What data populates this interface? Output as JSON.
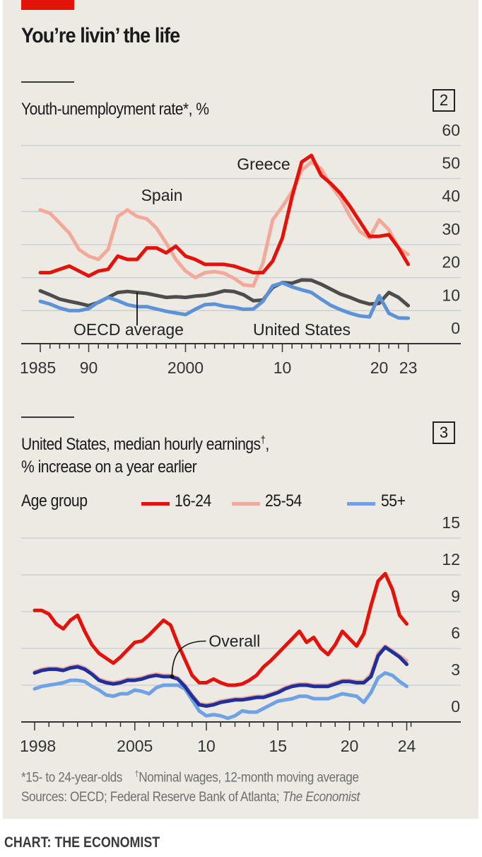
{
  "headline": "You’re livin’ the life",
  "colors": {
    "background": "#eceae2",
    "accent_red": "#e3120b",
    "greece": "#e3120b",
    "spain": "#f2a99a",
    "oecd": "#4d4d4d",
    "us": "#5b93d6",
    "age_16_24": "#e3120b",
    "age_25_54": "#f2a99a",
    "age_55_plus": "#6ea2e4",
    "overall": "#1f2f9c",
    "gridline": "#c9ccd3",
    "axis": "#333333"
  },
  "panel2": {
    "number": "2",
    "subtitle": "Youth-unemployment rate*, %"
  },
  "panel3": {
    "number": "3",
    "subtitle_line1": "United States, median hourly earnings",
    "subtitle_dagger": "†",
    "subtitle_comma": ",",
    "subtitle_line2": "% increase on a year earlier",
    "legend_title": "Age group",
    "legend": [
      {
        "label": "16-24",
        "color": "#e3120b"
      },
      {
        "label": "25-54",
        "color": "#f2a99a"
      },
      {
        "label": "55+",
        "color": "#6ea2e4"
      }
    ]
  },
  "footnotes": {
    "note1": "*15- to 24-year-olds",
    "note2_mark": "†",
    "note2": "Nominal wages, 12-month moving average",
    "sources_prefix": "Sources: OECD; Federal Reserve Bank of Atlanta; ",
    "sources_italic": "The Economist"
  },
  "credit": "CHART: THE ECONOMIST",
  "chart_data": [
    {
      "type": "line",
      "title": "Youth-unemployment rate*, %",
      "xlabel": "",
      "ylabel": "%",
      "xlim": [
        1985,
        2023
      ],
      "ylim": [
        0,
        60
      ],
      "yticks": [
        0,
        10,
        20,
        30,
        40,
        50,
        60
      ],
      "xticks": [
        {
          "value": 1985,
          "label": "1985"
        },
        {
          "value": 1990,
          "label": "90"
        },
        {
          "value": 2000,
          "label": "2000"
        },
        {
          "value": 2010,
          "label": "10"
        },
        {
          "value": 2020,
          "label": "20"
        },
        {
          "value": 2023,
          "label": "23"
        }
      ],
      "grid": true,
      "y_axis_side": "right",
      "x": [
        1985,
        1986,
        1987,
        1988,
        1989,
        1990,
        1991,
        1992,
        1993,
        1994,
        1995,
        1996,
        1997,
        1998,
        1999,
        2000,
        2001,
        2002,
        2003,
        2004,
        2005,
        2006,
        2007,
        2008,
        2009,
        2010,
        2011,
        2012,
        2013,
        2014,
        2015,
        2016,
        2017,
        2018,
        2019,
        2020,
        2021,
        2022,
        2023
      ],
      "series": [
        {
          "name": "Spain",
          "label": "Spain",
          "color": "#f2a99a",
          "values": [
            40.5,
            39.5,
            36.5,
            33.5,
            28.5,
            26.5,
            25.5,
            28.5,
            38.5,
            40.5,
            38.5,
            37.8,
            35.0,
            30.5,
            25.5,
            22.0,
            20.0,
            21.5,
            21.8,
            21.3,
            19.8,
            17.8,
            17.5,
            24.5,
            37.5,
            41.5,
            46.0,
            52.5,
            55.0,
            53.0,
            48.0,
            44.0,
            38.5,
            34.0,
            32.0,
            37.5,
            34.5,
            29.0,
            27.0
          ]
        },
        {
          "name": "Greece",
          "label": "Greece",
          "color": "#e3120b",
          "values": [
            21.5,
            21.5,
            22.5,
            23.5,
            22.0,
            20.5,
            22.0,
            22.5,
            26.5,
            25.5,
            25.5,
            29.0,
            29.0,
            27.5,
            29.5,
            26.5,
            25.5,
            24.0,
            24.0,
            24.0,
            23.5,
            22.5,
            21.5,
            21.5,
            25.0,
            32.0,
            44.5,
            55.0,
            57.0,
            51.0,
            48.5,
            45.5,
            41.5,
            37.0,
            32.5,
            32.5,
            33.0,
            29.0,
            24.0
          ]
        },
        {
          "name": "OECD average",
          "label": "OECD average",
          "color": "#4d4d4d",
          "values": [
            16.0,
            14.8,
            13.5,
            12.8,
            12.2,
            11.5,
            12.5,
            14.0,
            15.5,
            15.8,
            15.5,
            15.2,
            14.6,
            14.0,
            14.2,
            14.0,
            14.4,
            14.6,
            15.2,
            16.0,
            15.8,
            14.8,
            13.0,
            13.2,
            17.0,
            18.5,
            18.3,
            19.3,
            19.2,
            18.0,
            16.5,
            15.0,
            14.0,
            12.8,
            12.0,
            12.2,
            15.5,
            14.0,
            11.5
          ]
        },
        {
          "name": "United States",
          "label": "United States",
          "color": "#5b93d6",
          "values": [
            12.8,
            12.0,
            10.8,
            10.0,
            10.0,
            10.6,
            12.6,
            14.0,
            13.0,
            11.8,
            11.2,
            11.2,
            10.5,
            9.8,
            9.3,
            8.8,
            10.4,
            11.8,
            12.0,
            11.3,
            11.0,
            10.4,
            10.5,
            12.8,
            17.5,
            18.4,
            17.2,
            16.3,
            15.5,
            13.5,
            11.6,
            10.3,
            9.2,
            8.4,
            8.1,
            14.5,
            9.2,
            7.8,
            7.7
          ]
        }
      ],
      "annotations": [
        "Greece",
        "Spain",
        "OECD average",
        "United States"
      ]
    },
    {
      "type": "line",
      "title": "United States, median hourly earnings†, % increase on a year earlier",
      "xlabel": "",
      "ylabel": "% increase on a year earlier",
      "xlim": [
        1998,
        2024.5
      ],
      "ylim": [
        0,
        15
      ],
      "yticks": [
        0,
        3,
        6,
        9,
        12,
        15
      ],
      "xticks": [
        {
          "value": 1998,
          "label": "1998"
        },
        {
          "value": 2005,
          "label": "2005"
        },
        {
          "value": 2010,
          "label": "10"
        },
        {
          "value": 2015,
          "label": "15"
        },
        {
          "value": 2020,
          "label": "20"
        },
        {
          "value": 2024,
          "label": "24"
        }
      ],
      "grid": true,
      "y_axis_side": "right",
      "legend_position": "top-left",
      "x": [
        1998,
        1998.5,
        1999,
        1999.5,
        2000,
        2000.5,
        2001,
        2001.5,
        2002,
        2002.5,
        2003,
        2003.5,
        2004,
        2004.5,
        2005,
        2005.5,
        2006,
        2006.5,
        2007,
        2007.5,
        2008,
        2008.5,
        2009,
        2009.5,
        2010,
        2010.5,
        2011,
        2011.5,
        2012,
        2012.5,
        2013,
        2013.5,
        2014,
        2014.5,
        2015,
        2015.5,
        2016,
        2016.5,
        2017,
        2017.5,
        2018,
        2018.5,
        2019,
        2019.5,
        2020,
        2020.5,
        2021,
        2021.5,
        2022,
        2022.5,
        2023,
        2023.5,
        2024
      ],
      "series": [
        {
          "name": "16-24",
          "color": "#e3120b",
          "values": [
            9.1,
            9.1,
            8.8,
            8.0,
            7.6,
            8.3,
            8.7,
            7.4,
            6.3,
            5.6,
            5.2,
            4.8,
            5.3,
            5.9,
            6.5,
            6.6,
            7.1,
            7.7,
            8.3,
            7.9,
            6.4,
            5.1,
            3.8,
            3.2,
            3.2,
            3.5,
            3.2,
            3.0,
            3.0,
            3.1,
            3.4,
            3.8,
            4.5,
            5.0,
            5.6,
            6.2,
            6.8,
            7.4,
            6.5,
            6.9,
            6.0,
            5.5,
            6.3,
            7.4,
            6.8,
            6.2,
            7.2,
            9.5,
            11.5,
            12.1,
            10.8,
            8.7,
            8.0
          ]
        },
        {
          "name": "25-54",
          "color": "#f2a99a",
          "values": [
            4.1,
            4.3,
            4.4,
            4.4,
            4.3,
            4.5,
            4.6,
            4.4,
            4.0,
            3.5,
            3.3,
            3.2,
            3.3,
            3.5,
            3.5,
            3.6,
            3.8,
            3.9,
            3.8,
            3.8,
            3.6,
            3.0,
            2.2,
            1.5,
            1.4,
            1.5,
            1.7,
            1.8,
            1.9,
            1.9,
            2.0,
            2.1,
            2.1,
            2.3,
            2.5,
            2.8,
            3.0,
            3.1,
            3.1,
            3.0,
            3.0,
            3.0,
            3.2,
            3.4,
            3.4,
            3.3,
            3.3,
            3.9,
            5.6,
            6.2,
            5.8,
            5.4,
            5.0
          ]
        },
        {
          "name": "55+",
          "color": "#6ea2e4",
          "values": [
            2.7,
            2.9,
            3.0,
            3.1,
            3.2,
            3.4,
            3.4,
            3.3,
            2.9,
            2.6,
            2.2,
            2.1,
            2.3,
            2.3,
            2.6,
            2.5,
            2.3,
            2.8,
            3.0,
            3.0,
            3.0,
            2.7,
            1.8,
            0.9,
            0.5,
            0.6,
            0.5,
            0.3,
            0.5,
            0.9,
            0.8,
            0.8,
            1.1,
            1.4,
            1.7,
            1.8,
            1.9,
            2.1,
            2.1,
            1.9,
            1.9,
            1.9,
            2.1,
            2.3,
            2.2,
            2.1,
            1.6,
            2.4,
            3.6,
            4.0,
            3.8,
            3.3,
            2.9
          ]
        },
        {
          "name": "Overall",
          "color": "#1f2f9c",
          "values": [
            4.0,
            4.2,
            4.3,
            4.3,
            4.2,
            4.4,
            4.5,
            4.3,
            3.9,
            3.4,
            3.2,
            3.1,
            3.2,
            3.4,
            3.4,
            3.5,
            3.7,
            3.8,
            3.7,
            3.7,
            3.5,
            2.9,
            2.1,
            1.4,
            1.3,
            1.4,
            1.6,
            1.7,
            1.8,
            1.8,
            1.9,
            2.0,
            2.0,
            2.2,
            2.4,
            2.7,
            2.9,
            3.0,
            3.0,
            2.9,
            2.9,
            2.9,
            3.1,
            3.3,
            3.3,
            3.2,
            3.2,
            3.7,
            5.4,
            6.1,
            5.7,
            5.3,
            4.7
          ]
        }
      ],
      "annotations": [
        "Overall"
      ]
    }
  ]
}
